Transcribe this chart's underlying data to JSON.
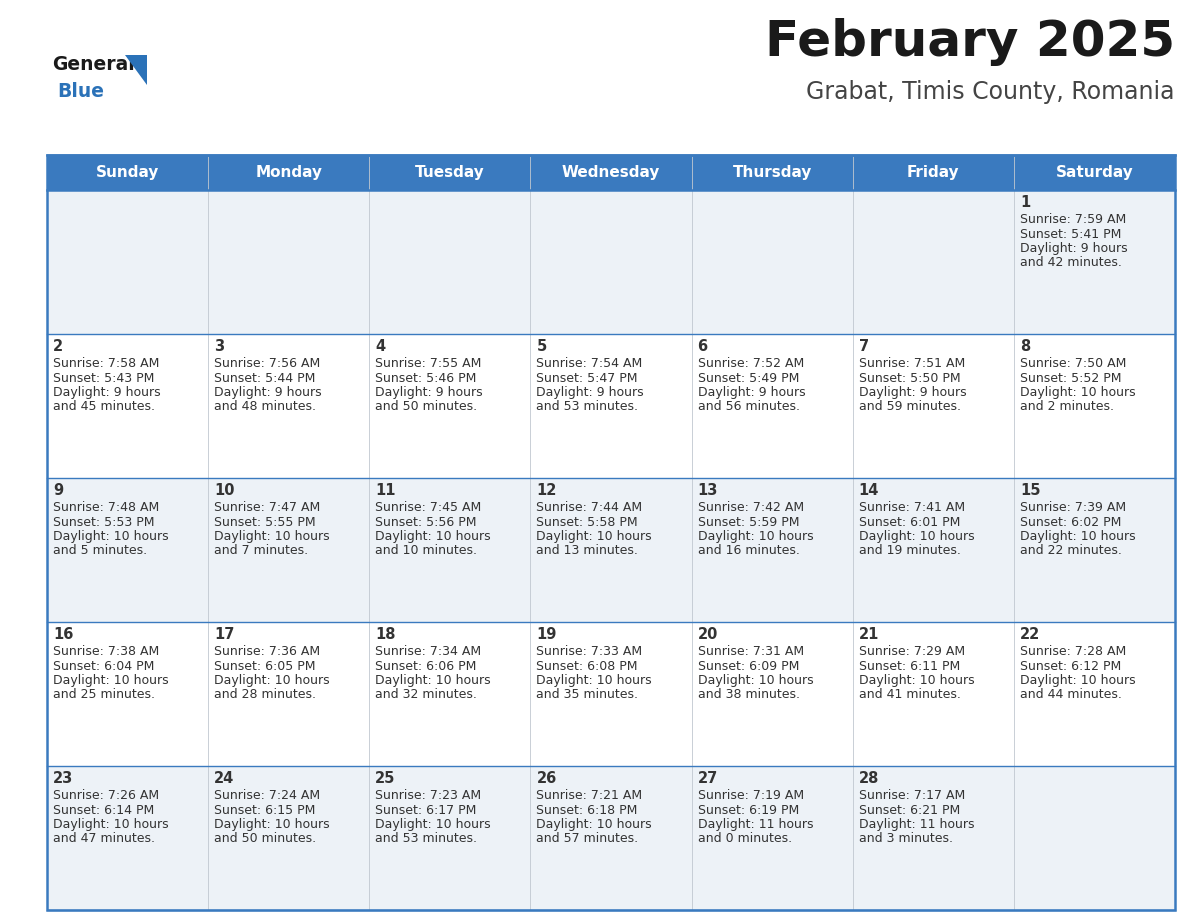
{
  "title": "February 2025",
  "subtitle": "Grabat, Timis County, Romania",
  "header_bg": "#3a7abf",
  "header_text": "#ffffff",
  "row0_bg": "#edf2f7",
  "row1_bg": "#ffffff",
  "border_color": "#3a7abf",
  "text_color": "#333333",
  "title_color": "#1a1a1a",
  "subtitle_color": "#444444",
  "logo_general_color": "#1a1a1a",
  "logo_blue_color": "#2b72b8",
  "day_headers": [
    "Sunday",
    "Monday",
    "Tuesday",
    "Wednesday",
    "Thursday",
    "Friday",
    "Saturday"
  ],
  "days": [
    {
      "date": 1,
      "col": 6,
      "row": 0,
      "sunrise": "7:59 AM",
      "sunset": "5:41 PM",
      "daylight_h": "9 hours",
      "daylight_m": "and 42 minutes."
    },
    {
      "date": 2,
      "col": 0,
      "row": 1,
      "sunrise": "7:58 AM",
      "sunset": "5:43 PM",
      "daylight_h": "9 hours",
      "daylight_m": "and 45 minutes."
    },
    {
      "date": 3,
      "col": 1,
      "row": 1,
      "sunrise": "7:56 AM",
      "sunset": "5:44 PM",
      "daylight_h": "9 hours",
      "daylight_m": "and 48 minutes."
    },
    {
      "date": 4,
      "col": 2,
      "row": 1,
      "sunrise": "7:55 AM",
      "sunset": "5:46 PM",
      "daylight_h": "9 hours",
      "daylight_m": "and 50 minutes."
    },
    {
      "date": 5,
      "col": 3,
      "row": 1,
      "sunrise": "7:54 AM",
      "sunset": "5:47 PM",
      "daylight_h": "9 hours",
      "daylight_m": "and 53 minutes."
    },
    {
      "date": 6,
      "col": 4,
      "row": 1,
      "sunrise": "7:52 AM",
      "sunset": "5:49 PM",
      "daylight_h": "9 hours",
      "daylight_m": "and 56 minutes."
    },
    {
      "date": 7,
      "col": 5,
      "row": 1,
      "sunrise": "7:51 AM",
      "sunset": "5:50 PM",
      "daylight_h": "9 hours",
      "daylight_m": "and 59 minutes."
    },
    {
      "date": 8,
      "col": 6,
      "row": 1,
      "sunrise": "7:50 AM",
      "sunset": "5:52 PM",
      "daylight_h": "10 hours",
      "daylight_m": "and 2 minutes."
    },
    {
      "date": 9,
      "col": 0,
      "row": 2,
      "sunrise": "7:48 AM",
      "sunset": "5:53 PM",
      "daylight_h": "10 hours",
      "daylight_m": "and 5 minutes."
    },
    {
      "date": 10,
      "col": 1,
      "row": 2,
      "sunrise": "7:47 AM",
      "sunset": "5:55 PM",
      "daylight_h": "10 hours",
      "daylight_m": "and 7 minutes."
    },
    {
      "date": 11,
      "col": 2,
      "row": 2,
      "sunrise": "7:45 AM",
      "sunset": "5:56 PM",
      "daylight_h": "10 hours",
      "daylight_m": "and 10 minutes."
    },
    {
      "date": 12,
      "col": 3,
      "row": 2,
      "sunrise": "7:44 AM",
      "sunset": "5:58 PM",
      "daylight_h": "10 hours",
      "daylight_m": "and 13 minutes."
    },
    {
      "date": 13,
      "col": 4,
      "row": 2,
      "sunrise": "7:42 AM",
      "sunset": "5:59 PM",
      "daylight_h": "10 hours",
      "daylight_m": "and 16 minutes."
    },
    {
      "date": 14,
      "col": 5,
      "row": 2,
      "sunrise": "7:41 AM",
      "sunset": "6:01 PM",
      "daylight_h": "10 hours",
      "daylight_m": "and 19 minutes."
    },
    {
      "date": 15,
      "col": 6,
      "row": 2,
      "sunrise": "7:39 AM",
      "sunset": "6:02 PM",
      "daylight_h": "10 hours",
      "daylight_m": "and 22 minutes."
    },
    {
      "date": 16,
      "col": 0,
      "row": 3,
      "sunrise": "7:38 AM",
      "sunset": "6:04 PM",
      "daylight_h": "10 hours",
      "daylight_m": "and 25 minutes."
    },
    {
      "date": 17,
      "col": 1,
      "row": 3,
      "sunrise": "7:36 AM",
      "sunset": "6:05 PM",
      "daylight_h": "10 hours",
      "daylight_m": "and 28 minutes."
    },
    {
      "date": 18,
      "col": 2,
      "row": 3,
      "sunrise": "7:34 AM",
      "sunset": "6:06 PM",
      "daylight_h": "10 hours",
      "daylight_m": "and 32 minutes."
    },
    {
      "date": 19,
      "col": 3,
      "row": 3,
      "sunrise": "7:33 AM",
      "sunset": "6:08 PM",
      "daylight_h": "10 hours",
      "daylight_m": "and 35 minutes."
    },
    {
      "date": 20,
      "col": 4,
      "row": 3,
      "sunrise": "7:31 AM",
      "sunset": "6:09 PM",
      "daylight_h": "10 hours",
      "daylight_m": "and 38 minutes."
    },
    {
      "date": 21,
      "col": 5,
      "row": 3,
      "sunrise": "7:29 AM",
      "sunset": "6:11 PM",
      "daylight_h": "10 hours",
      "daylight_m": "and 41 minutes."
    },
    {
      "date": 22,
      "col": 6,
      "row": 3,
      "sunrise": "7:28 AM",
      "sunset": "6:12 PM",
      "daylight_h": "10 hours",
      "daylight_m": "and 44 minutes."
    },
    {
      "date": 23,
      "col": 0,
      "row": 4,
      "sunrise": "7:26 AM",
      "sunset": "6:14 PM",
      "daylight_h": "10 hours",
      "daylight_m": "and 47 minutes."
    },
    {
      "date": 24,
      "col": 1,
      "row": 4,
      "sunrise": "7:24 AM",
      "sunset": "6:15 PM",
      "daylight_h": "10 hours",
      "daylight_m": "and 50 minutes."
    },
    {
      "date": 25,
      "col": 2,
      "row": 4,
      "sunrise": "7:23 AM",
      "sunset": "6:17 PM",
      "daylight_h": "10 hours",
      "daylight_m": "and 53 minutes."
    },
    {
      "date": 26,
      "col": 3,
      "row": 4,
      "sunrise": "7:21 AM",
      "sunset": "6:18 PM",
      "daylight_h": "10 hours",
      "daylight_m": "and 57 minutes."
    },
    {
      "date": 27,
      "col": 4,
      "row": 4,
      "sunrise": "7:19 AM",
      "sunset": "6:19 PM",
      "daylight_h": "11 hours",
      "daylight_m": "and 0 minutes."
    },
    {
      "date": 28,
      "col": 5,
      "row": 4,
      "sunrise": "7:17 AM",
      "sunset": "6:21 PM",
      "daylight_h": "11 hours",
      "daylight_m": "and 3 minutes."
    }
  ]
}
